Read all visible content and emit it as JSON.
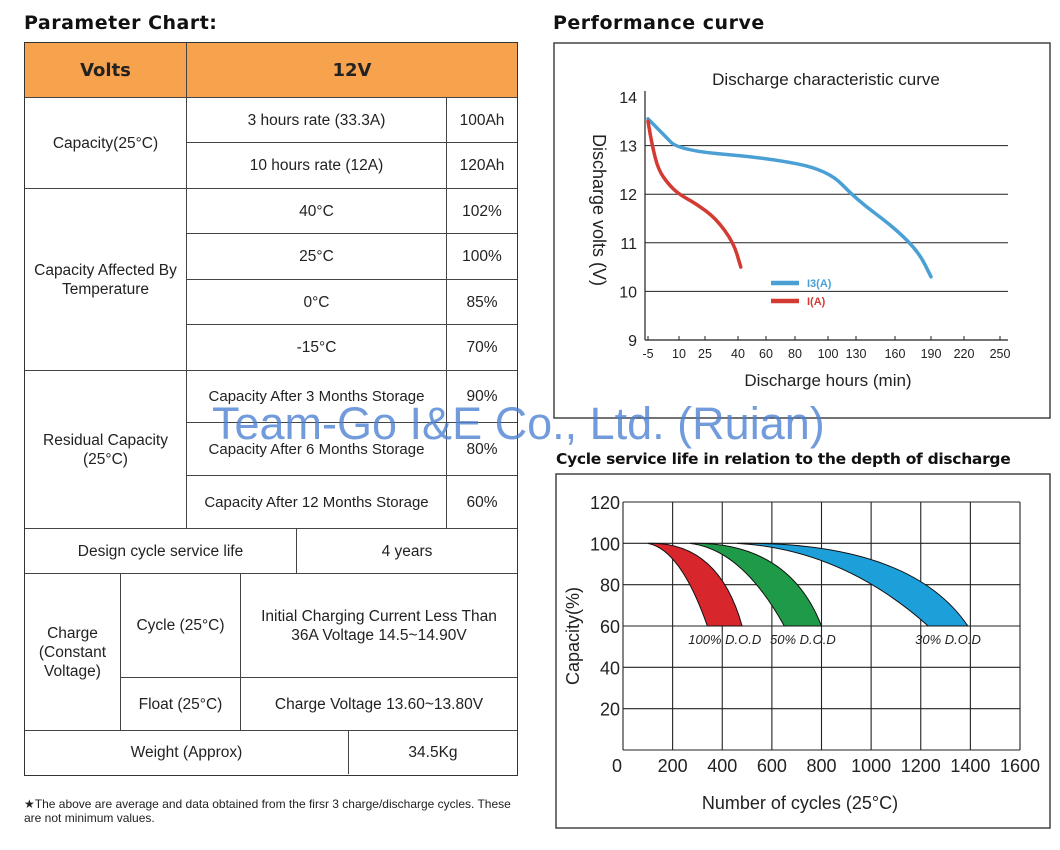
{
  "headings": {
    "parameter_chart": "Parameter Chart:",
    "performance_curve": "Performance curve",
    "cycle_life": "Cycle service life in relation to the depth of discharge"
  },
  "table": {
    "volts_label": "Volts",
    "volts_value": "12V",
    "capacity_label": "Capacity(25°C)",
    "cap_3h_label": "3 hours rate (33.3A)",
    "cap_3h_value": "100Ah",
    "cap_10h_label": "10 hours rate (12A)",
    "cap_10h_value": "120Ah",
    "temp_label": "Capacity Affected By Temperature",
    "temp_rows": [
      {
        "temp": "40°C",
        "value": "102%"
      },
      {
        "temp": "25°C",
        "value": "100%"
      },
      {
        "temp": "0°C",
        "value": "85%"
      },
      {
        "temp": "-15°C",
        "value": "70%"
      }
    ],
    "residual_label": "Residual Capacity (25°C)",
    "residual_rows": [
      {
        "label": "Capacity After 3 Months Storage",
        "value": "90%"
      },
      {
        "label": "Capacity After 6 Months Storage",
        "value": "80%"
      },
      {
        "label": "Capacity After 12 Months Storage",
        "value": "60%"
      }
    ],
    "design_life_label": "Design cycle service life",
    "design_life_value": "4 years",
    "charge_label": "Charge (Constant Voltage)",
    "cycle_label": "Cycle (25°C)",
    "cycle_value": "Initial Charging Current Less Than 36A Voltage 14.5~14.90V",
    "float_label": "Float (25°C)",
    "float_value": "Charge Voltage 13.60~13.80V",
    "weight_label": "Weight (Approx)",
    "weight_value": "34.5Kg"
  },
  "footnote": "★The above are average and data obtained from the firsr 3 charge/discharge cycles. These are not minimum values.",
  "watermark": "Team-Go I&E Co., Ltd. (Ruian)",
  "chart_data": [
    {
      "type": "line",
      "title": "Discharge characteristic curve",
      "xlabel": "Discharge hours (min)",
      "ylabel": "Discharge volts (V)",
      "x_ticks": [
        "-5",
        "10",
        "25",
        "40",
        "60",
        "80",
        "100",
        "130",
        "160",
        "190",
        "220",
        "250"
      ],
      "y_ticks": [
        9,
        10,
        11,
        12,
        13,
        14
      ],
      "ylim": [
        9,
        14
      ],
      "grid": "horizontal",
      "series": [
        {
          "name": "I3(A)",
          "color": "#4aa0d5",
          "x": [
            -5,
            2,
            10,
            60,
            100,
            130,
            160,
            180,
            190
          ],
          "y": [
            13.55,
            13.25,
            12.9,
            12.75,
            12.5,
            11.9,
            11.3,
            10.8,
            10.3
          ]
        },
        {
          "name": "I(A)",
          "color": "#d23a32",
          "x": [
            -5,
            -3,
            0,
            5,
            10,
            20,
            30,
            38,
            42
          ],
          "y": [
            13.5,
            13.0,
            12.5,
            12.2,
            12.0,
            11.8,
            11.5,
            11.0,
            10.5
          ]
        }
      ]
    },
    {
      "type": "area",
      "title": "",
      "xlabel": "Number of cycles (25°C)",
      "ylabel": "Capacity(%)",
      "xlim": [
        0,
        1600
      ],
      "ylim": [
        0,
        120
      ],
      "x_ticks": [
        0,
        200,
        400,
        600,
        800,
        1000,
        1200,
        1400,
        1600
      ],
      "y_ticks": [
        20,
        40,
        60,
        80,
        100,
        120
      ],
      "grid": "both",
      "series": [
        {
          "name": "100% D.O.D",
          "color": "#d8262d",
          "start_x": 100,
          "start_y": 100,
          "end_x_low": 340,
          "end_x_high": 480,
          "end_y": 60
        },
        {
          "name": "50% D.O.D",
          "color": "#1f9a48",
          "start_x": 270,
          "start_y": 100,
          "end_x_low": 650,
          "end_x_high": 800,
          "end_y": 60
        },
        {
          "name": "30% D.O.D",
          "color": "#1d9fda",
          "start_x": 460,
          "start_y": 100,
          "end_x_low": 1230,
          "end_x_high": 1390,
          "end_y": 60
        }
      ]
    }
  ]
}
